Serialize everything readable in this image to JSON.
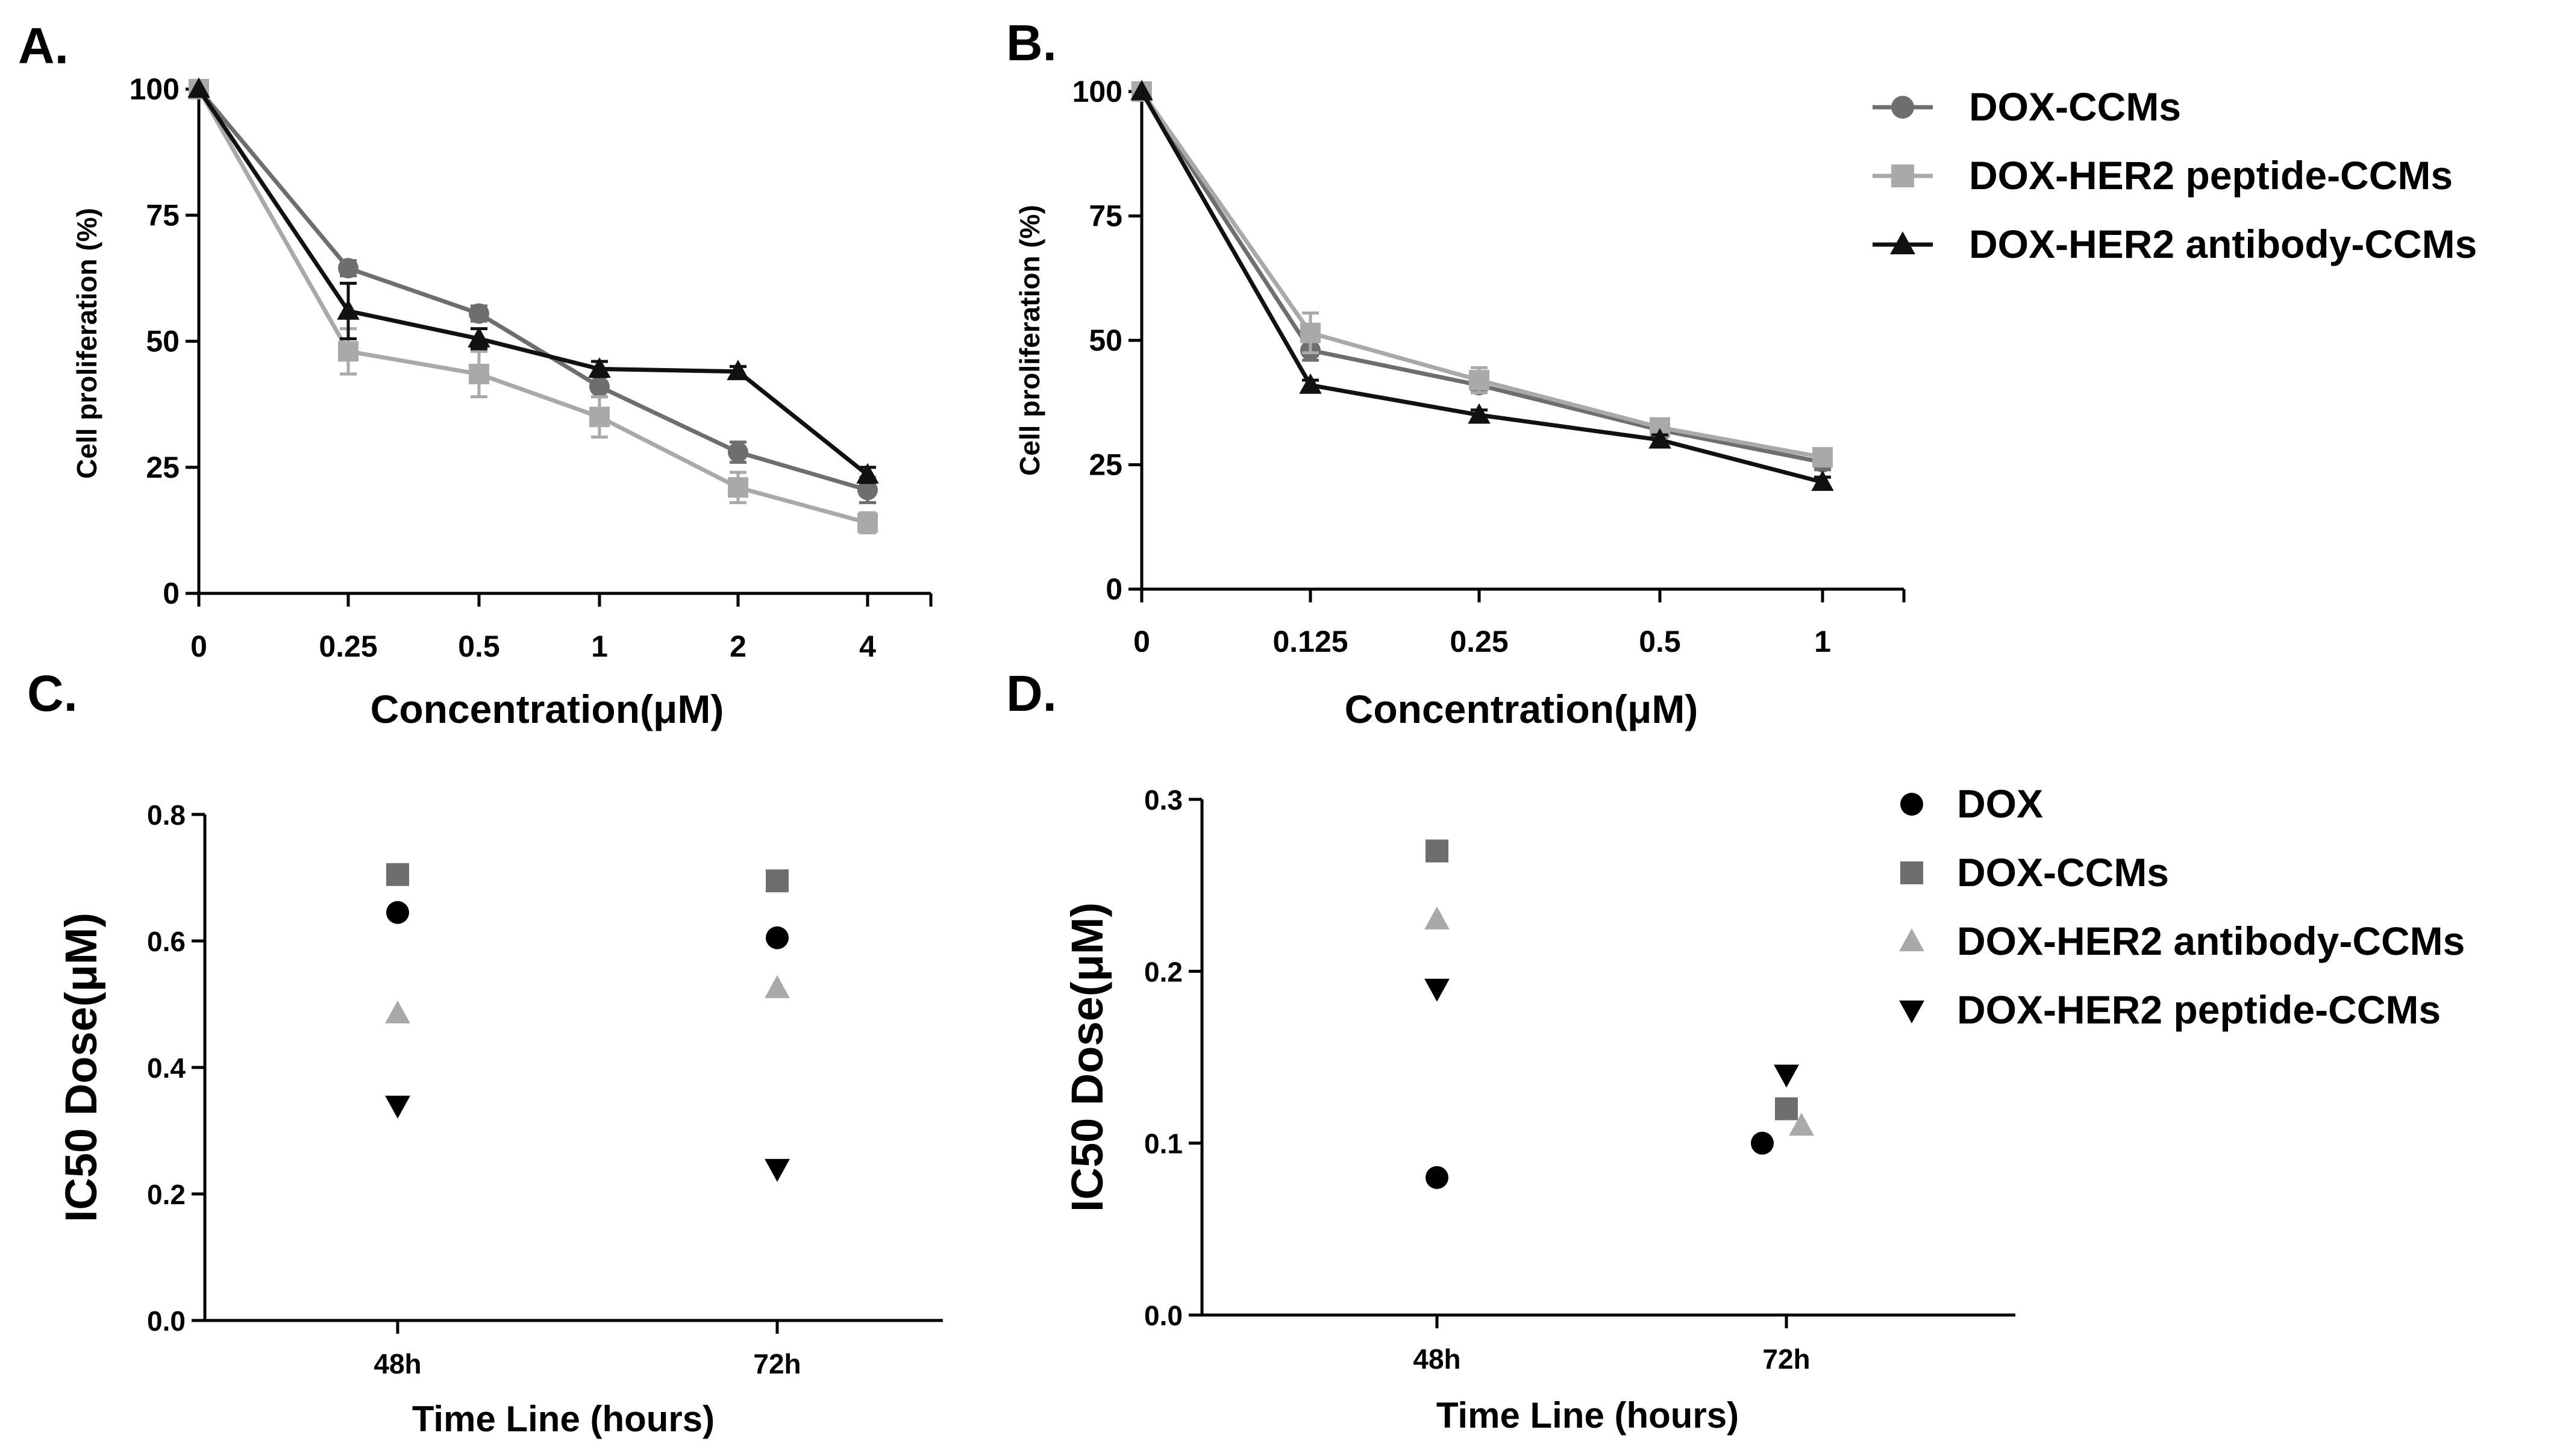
{
  "chart_data": [
    {
      "id": "A",
      "panel_label": "A.",
      "type": "line",
      "xlabel": "Concentration(μM)",
      "ylabel": "Cell proliferation (%)",
      "categories": [
        "0",
        "0.25",
        "0.5",
        "1",
        "2",
        "4"
      ],
      "yticks": [
        "0",
        "25",
        "50",
        "75",
        "100"
      ],
      "ylim": [
        0,
        100
      ],
      "error_bars": true,
      "series": [
        {
          "name": "DOX-CCMs",
          "color": "#6e6e6e",
          "marker": "circle",
          "values": [
            100,
            64.5,
            55.5,
            41,
            28,
            20.5
          ],
          "errors": [
            0,
            1.5,
            1.5,
            2,
            2,
            2.5
          ]
        },
        {
          "name": "DOX-HER2 peptide-CCMs",
          "color": "#a9a9a9",
          "marker": "square",
          "values": [
            100,
            48,
            43.5,
            35,
            21,
            14
          ],
          "errors": [
            0,
            4.5,
            4.5,
            4,
            3,
            2
          ]
        },
        {
          "name": "DOX-HER2 antibody-CCMs",
          "color": "#111111",
          "marker": "triangle",
          "values": [
            100,
            56,
            50.5,
            44.5,
            44,
            23.5
          ],
          "errors": [
            0,
            5.5,
            2,
            1.5,
            1,
            1.5
          ]
        }
      ]
    },
    {
      "id": "B",
      "panel_label": "B.",
      "type": "line",
      "xlabel": "Concentration(μM)",
      "ylabel": "Cell proliferation (%)",
      "categories": [
        "0",
        "0.125",
        "0.25",
        "0.5",
        "1"
      ],
      "yticks": [
        "0",
        "25",
        "50",
        "75",
        "100"
      ],
      "ylim": [
        0,
        100
      ],
      "error_bars": true,
      "series": [
        {
          "name": "DOX-CCMs",
          "color": "#6e6e6e",
          "marker": "circle",
          "values": [
            100,
            48,
            41,
            32,
            25.5
          ],
          "errors": [
            0,
            2,
            1.5,
            1.5,
            1.5
          ]
        },
        {
          "name": "DOX-HER2 peptide-CCMs",
          "color": "#a9a9a9",
          "marker": "square",
          "values": [
            100,
            51.5,
            42,
            32.5,
            26.5
          ],
          "errors": [
            0,
            4,
            2.5,
            1.5,
            1.5
          ]
        },
        {
          "name": "DOX-HER2 antibody-CCMs",
          "color": "#111111",
          "marker": "triangle",
          "values": [
            100,
            41,
            35,
            30,
            21.5
          ],
          "errors": [
            0,
            1,
            1,
            1,
            1
          ]
        }
      ]
    },
    {
      "id": "C",
      "panel_label": "C.",
      "type": "scatter",
      "xlabel": "Time Line (hours)",
      "ylabel": "IC50 Dose(μM)",
      "categories": [
        "48h",
        "72h"
      ],
      "yticks": [
        "0.0",
        "0.2",
        "0.4",
        "0.6",
        "0.8"
      ],
      "ylim": [
        0,
        0.8
      ],
      "series": [
        {
          "name": "DOX",
          "color": "#000000",
          "marker": "circle",
          "values": [
            0.645,
            0.605
          ]
        },
        {
          "name": "DOX-CCMs",
          "color": "#6e6e6e",
          "marker": "square",
          "values": [
            0.705,
            0.695
          ]
        },
        {
          "name": "DOX-HER2 antibody-CCMs",
          "color": "#a9a9a9",
          "marker": "triangle",
          "values": [
            0.485,
            0.525
          ]
        },
        {
          "name": "DOX-HER2 peptide-CCMs",
          "color": "#000000",
          "marker": "triangle-down",
          "values": [
            0.34,
            0.24
          ]
        }
      ]
    },
    {
      "id": "D",
      "panel_label": "D.",
      "type": "scatter",
      "xlabel": "Time Line (hours)",
      "ylabel": "IC50 Dose(μM)",
      "categories": [
        "48h",
        "72h"
      ],
      "yticks": [
        "0.0",
        "0.1",
        "0.2",
        "0.3"
      ],
      "ylim": [
        0,
        0.3
      ],
      "series": [
        {
          "name": "DOX",
          "color": "#000000",
          "marker": "circle",
          "values": [
            0.08,
            0.1
          ]
        },
        {
          "name": "DOX-CCMs",
          "color": "#6e6e6e",
          "marker": "square",
          "values": [
            0.27,
            0.12
          ]
        },
        {
          "name": "DOX-HER2 antibody-CCMs",
          "color": "#a9a9a9",
          "marker": "triangle",
          "values": [
            0.23,
            0.11
          ]
        },
        {
          "name": "DOX-HER2 peptide-CCMs",
          "color": "#000000",
          "marker": "triangle-down",
          "values": [
            0.19,
            0.14
          ]
        }
      ]
    }
  ],
  "legends": {
    "top": [
      {
        "label": "DOX-CCMs",
        "color": "#6e6e6e",
        "marker": "circle",
        "line": true
      },
      {
        "label": "DOX-HER2 peptide-CCMs",
        "color": "#a9a9a9",
        "marker": "square",
        "line": true
      },
      {
        "label": "DOX-HER2 antibody-CCMs",
        "color": "#111111",
        "marker": "triangle",
        "line": true
      }
    ],
    "bottom": [
      {
        "label": "DOX",
        "color": "#000000",
        "marker": "circle",
        "line": false
      },
      {
        "label": "DOX-CCMs",
        "color": "#6e6e6e",
        "marker": "square",
        "line": false
      },
      {
        "label": "DOX-HER2 antibody-CCMs",
        "color": "#a9a9a9",
        "marker": "triangle",
        "line": false
      },
      {
        "label": "DOX-HER2 peptide-CCMs",
        "color": "#000000",
        "marker": "triangle-down",
        "line": false
      }
    ]
  }
}
